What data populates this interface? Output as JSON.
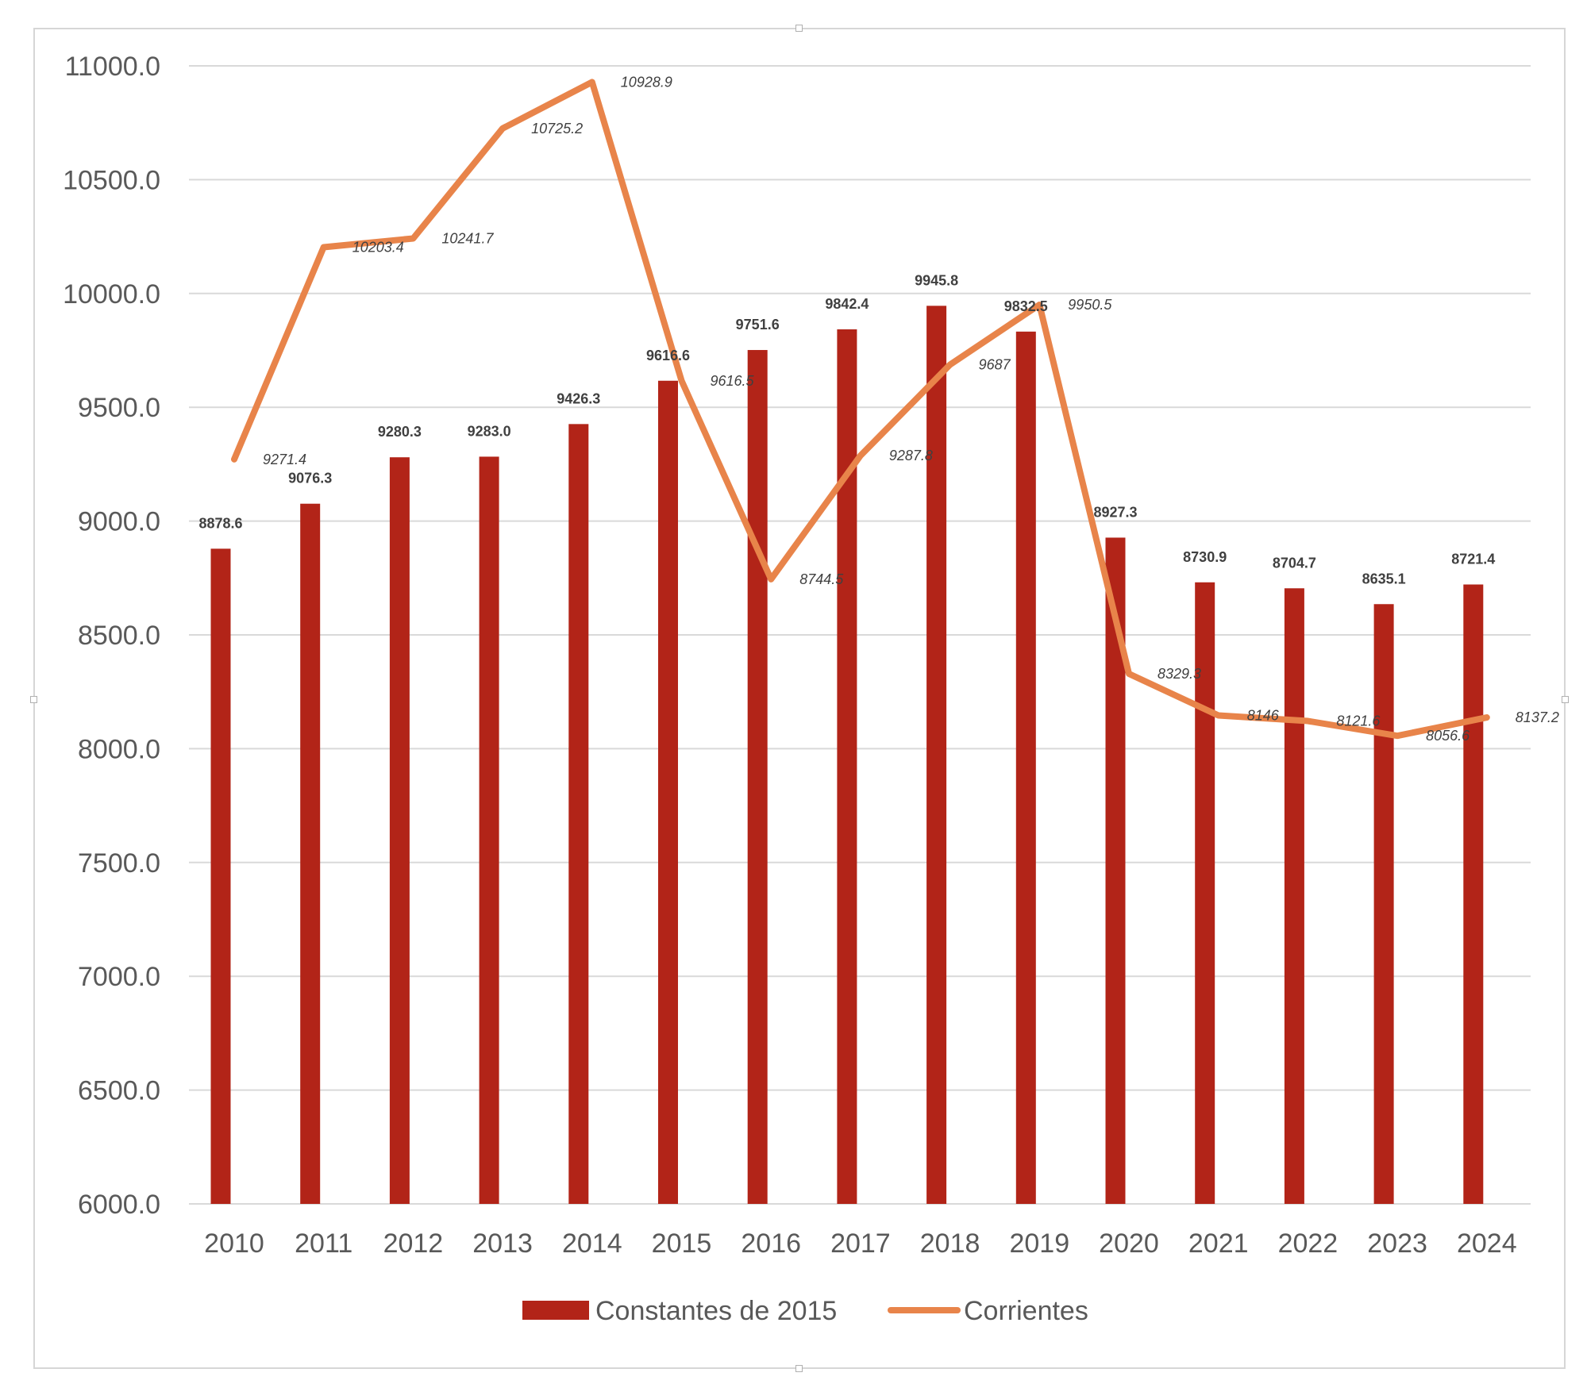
{
  "chart_data": {
    "type": "bar",
    "title": "",
    "xlabel": "",
    "ylabel": "",
    "ylim": [
      6000,
      11000
    ],
    "yticks": [
      "6000.0",
      "6500.0",
      "7000.0",
      "7500.0",
      "8000.0",
      "8500.0",
      "9000.0",
      "9500.0",
      "10000.0",
      "10500.0",
      "11000.0"
    ],
    "grid": true,
    "legend_position": "bottom",
    "categories": [
      "2010",
      "2011",
      "2012",
      "2013",
      "2014",
      "2015",
      "2016",
      "2017",
      "2018",
      "2019",
      "2020",
      "2021",
      "2022",
      "2023",
      "2024"
    ],
    "series": [
      {
        "name": "Constantes de 2015",
        "type": "bar",
        "color": "#b22418",
        "values": [
          8878.6,
          9076.3,
          9280.3,
          9283.0,
          9426.3,
          9616.6,
          9751.6,
          9842.4,
          9945.8,
          9832.5,
          8927.3,
          8730.9,
          8704.7,
          8635.1,
          8721.4
        ],
        "labels": [
          "8878.6",
          "9076.3",
          "9280.3",
          "9283.0",
          "9426.3",
          "9616.6",
          "9751.6",
          "9842.4",
          "9945.8",
          "9832.5",
          "8927.3",
          "8730.9",
          "8704.7",
          "8635.1",
          "8721.4"
        ]
      },
      {
        "name": "Corrientes",
        "type": "line",
        "color": "#e8844a",
        "values": [
          9271.4,
          10203.4,
          10241.7,
          10725.2,
          10928.9,
          9616.5,
          8744.5,
          9287.8,
          9687,
          9950.5,
          8329.3,
          8146,
          8121.6,
          8056.6,
          8137.2
        ],
        "labels": [
          "9271.4",
          "10203.4",
          "10241.7",
          "10725.2",
          "10928.9",
          "9616.5",
          "8744.5",
          "9287.8",
          "9687",
          "9950.5",
          "8329.3",
          "8146",
          "8121.6",
          "8056.6",
          "8137.2"
        ]
      }
    ]
  }
}
